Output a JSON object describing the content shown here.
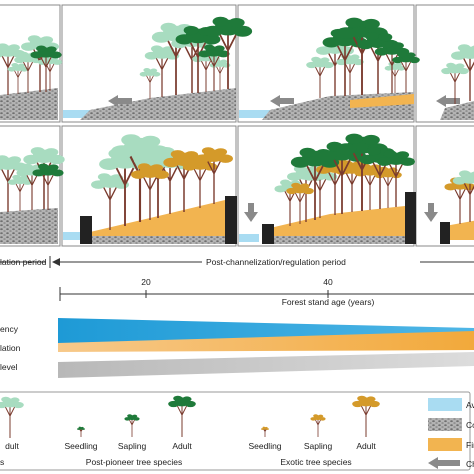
{
  "periods": {
    "pre_label": "lation period",
    "post_label": "Post-channelization/regulation period"
  },
  "age_axis": {
    "title": "Forest stand age (years)",
    "ticks": [
      "20",
      "40"
    ]
  },
  "gradients": {
    "labels": [
      "ency",
      "lation",
      "level"
    ],
    "colors": [
      "#1e9ad6",
      "#f2a93b",
      "#c8c8c8"
    ]
  },
  "legend": {
    "post_pioneer": {
      "title": "Post-pioneer tree species",
      "stages": [
        "Seedling",
        "Sapling",
        "Adult"
      ]
    },
    "exotic": {
      "title": "Exotic tree species",
      "stages": [
        "Seedling",
        "Sapling",
        "Adult"
      ]
    },
    "left_partial": [
      "dult",
      "s"
    ],
    "swatches": [
      {
        "label": "Av",
        "color": "#a9dcf2"
      },
      {
        "label": "Co",
        "color": "#9a9a9a"
      },
      {
        "label": "Fin",
        "color": "#f2b450"
      },
      {
        "label": "Ch",
        "color": "#8a8a8a"
      }
    ]
  },
  "colors": {
    "water": "#a9dcf2",
    "gravel": "#9e9e9e",
    "fine_sediment": "#f2b450",
    "pioneer_canopy": "#a8dcc0",
    "post_pioneer_canopy": "#1f7a3a",
    "exotic_canopy": "#d49a2a",
    "trunk": "#7a3b2e",
    "arrow": "#8a8a8a",
    "frame": "#888888"
  }
}
